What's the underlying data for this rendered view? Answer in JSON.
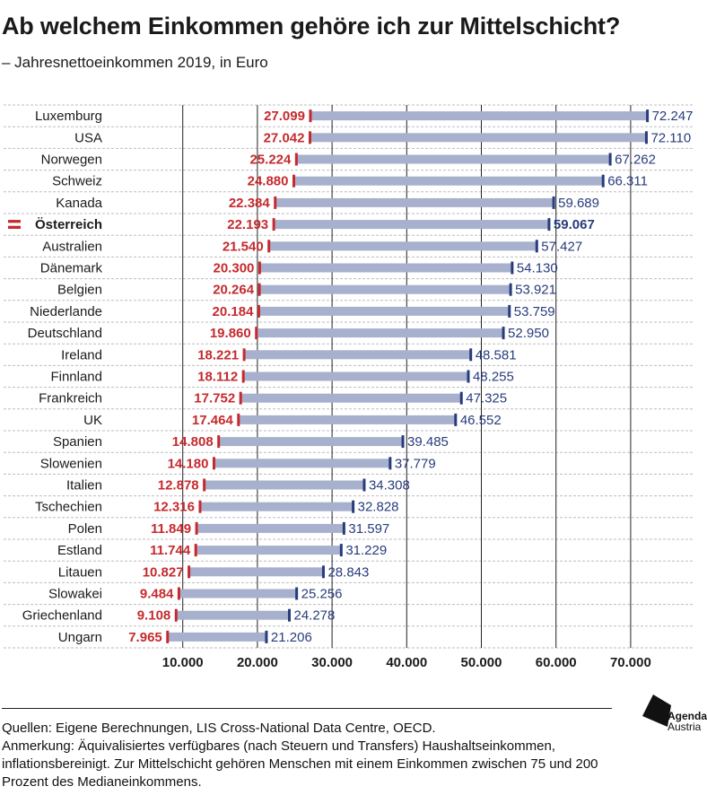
{
  "header": {
    "title": "Ab welchem Einkommen gehöre ich zur Mittelschicht?",
    "subtitle": "– Jahresnettoeinkommen 2019, in Euro"
  },
  "chart_data": {
    "type": "bar",
    "orientation": "horizontal-range",
    "title": "Ab welchem Einkommen gehöre ich zur Mittelschicht?",
    "subtitle": "– Jahresnettoeinkommen 2019, in Euro",
    "xlim": [
      0,
      80000
    ],
    "xticks": [
      10000,
      20000,
      30000,
      40000,
      50000,
      60000,
      70000
    ],
    "xtick_labels": [
      "10.000",
      "20.000",
      "30.000",
      "40.000",
      "50.000",
      "60.000",
      "70.000"
    ],
    "grid": "vertical",
    "highlight": "Österreich",
    "colors": {
      "bar": "#a7b0cd",
      "low": "#c52a2e",
      "high": "#283c7c",
      "grid": "#222222"
    },
    "categories": [
      "Luxemburg",
      "USA",
      "Norwegen",
      "Schweiz",
      "Kanada",
      "Österreich",
      "Australien",
      "Dänemark",
      "Belgien",
      "Niederlande",
      "Deutschland",
      "Ireland",
      "Finnland",
      "Frankreich",
      "UK",
      "Spanien",
      "Slowenien",
      "Italien",
      "Tschechien",
      "Polen",
      "Estland",
      "Litauen",
      "Slowakei",
      "Griechenland",
      "Ungarn"
    ],
    "low": [
      27099,
      27042,
      25224,
      24880,
      22384,
      22193,
      21540,
      20300,
      20264,
      20184,
      19860,
      18221,
      18112,
      17752,
      17464,
      14808,
      14180,
      12878,
      12316,
      11849,
      11744,
      10827,
      9484,
      9108,
      7965
    ],
    "high": [
      72247,
      72110,
      67262,
      66311,
      59689,
      59067,
      57427,
      54130,
      53921,
      53759,
      52950,
      48581,
      48255,
      47325,
      46552,
      39485,
      37779,
      34308,
      32828,
      31597,
      31229,
      28843,
      25256,
      24278,
      21206
    ],
    "low_labels": [
      "27.099",
      "27.042",
      "25.224",
      "24.880",
      "22.384",
      "22.193",
      "21.540",
      "20.300",
      "20.264",
      "20.184",
      "19.860",
      "18.221",
      "18.112",
      "17.752",
      "17.464",
      "14.808",
      "14.180",
      "12.878",
      "12.316",
      "11.849",
      "11.744",
      "10.827",
      "9.484",
      "9.108",
      "7.965"
    ],
    "high_labels": [
      "72.247",
      "72.110",
      "67.262",
      "66.311",
      "59.689",
      "59.067",
      "57.427",
      "54.130",
      "53.921",
      "53.759",
      "52.950",
      "48.581",
      "48.255",
      "47.325",
      "46.552",
      "39.485",
      "37.779",
      "34.308",
      "32.828",
      "31.597",
      "31.229",
      "28.843",
      "25.256",
      "24.278",
      "21.206"
    ]
  },
  "footer": {
    "sources": "Quellen: Eigene Berechnungen, LIS Cross-National Data Centre, OECD.",
    "note": "Anmerkung: Äquivalisiertes verfügbares (nach Steuern und Transfers) Haushaltseinkommen, inflationsbereinigt. Zur Mittelschicht gehören Menschen mit einem Einkommen zwischen 75 und 200 Prozent des Medianeinkommens."
  },
  "logo": {
    "name": "Agenda",
    "sub": "Austria"
  }
}
